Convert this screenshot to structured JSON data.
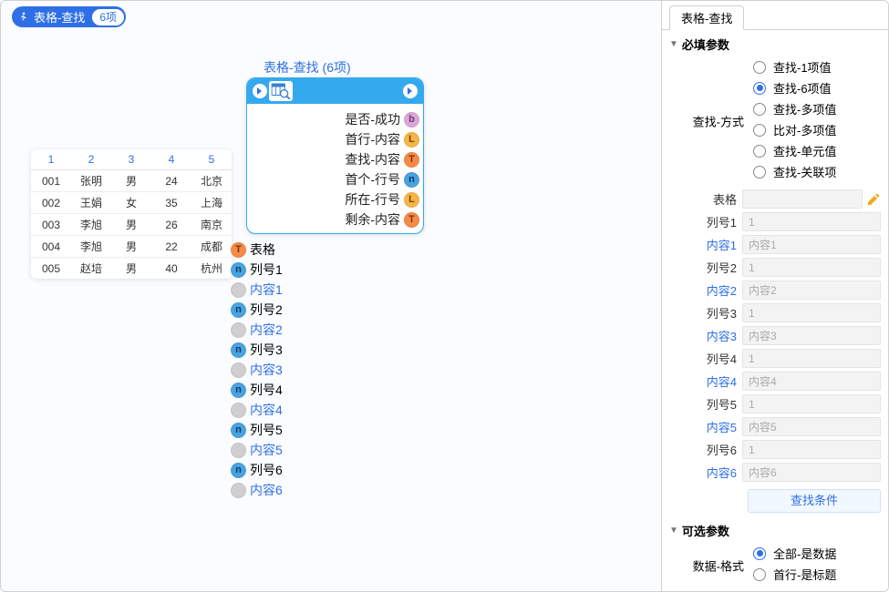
{
  "colors": {
    "accent": "#2f6fe6",
    "nodeHeader": "#35a9ed",
    "border": "#d0d0d0",
    "canvasBg": "#fafcff",
    "fieldBg": "#f3f3f3"
  },
  "tag": {
    "title": "表格-查找",
    "badge": "6项"
  },
  "sampleTable": {
    "headers": [
      "1",
      "2",
      "3",
      "4",
      "5"
    ],
    "rows": [
      [
        "001",
        "张明",
        "男",
        "24",
        "北京"
      ],
      [
        "002",
        "王娟",
        "女",
        "35",
        "上海"
      ],
      [
        "003",
        "李旭",
        "男",
        "26",
        "南京"
      ],
      [
        "004",
        "李旭",
        "男",
        "22",
        "成都"
      ],
      [
        "005",
        "赵培",
        "男",
        "40",
        "杭州"
      ]
    ]
  },
  "node": {
    "title": "表格-查找 (6项)",
    "outputs": [
      {
        "label": "是否-成功",
        "type": "b"
      },
      {
        "label": "首行-内容",
        "type": "L"
      },
      {
        "label": "查找-内容",
        "type": "T"
      },
      {
        "label": "首个-行号",
        "type": "n"
      },
      {
        "label": "所在-行号",
        "type": "L"
      },
      {
        "label": "剩余-内容",
        "type": "T"
      }
    ],
    "inputs": [
      {
        "label": "表格",
        "type": "T",
        "link": false
      },
      {
        "label": "列号1",
        "type": "n",
        "link": false
      },
      {
        "label": "内容1",
        "type": "g",
        "link": true
      },
      {
        "label": "列号2",
        "type": "n",
        "link": false
      },
      {
        "label": "内容2",
        "type": "g",
        "link": true
      },
      {
        "label": "列号3",
        "type": "n",
        "link": false
      },
      {
        "label": "内容3",
        "type": "g",
        "link": true
      },
      {
        "label": "列号4",
        "type": "n",
        "link": false
      },
      {
        "label": "内容4",
        "type": "g",
        "link": true
      },
      {
        "label": "列号5",
        "type": "n",
        "link": false
      },
      {
        "label": "内容5",
        "type": "g",
        "link": true
      },
      {
        "label": "列号6",
        "type": "n",
        "link": false
      },
      {
        "label": "内容6",
        "type": "g",
        "link": true
      }
    ]
  },
  "panel": {
    "tab": "表格-查找",
    "section1": "必填参数",
    "searchModeLabel": "查找-方式",
    "searchModes": [
      {
        "label": "查找-1项值",
        "selected": false
      },
      {
        "label": "查找-6项值",
        "selected": true
      },
      {
        "label": "查找-多项值",
        "selected": false
      },
      {
        "label": "比对-多项值",
        "selected": false
      },
      {
        "label": "查找-单元值",
        "selected": false
      },
      {
        "label": "查找-关联项",
        "selected": false
      }
    ],
    "tableLabel": "表格",
    "fields": [
      {
        "lbl": "列号1",
        "ph": "1",
        "link": false
      },
      {
        "lbl": "内容1",
        "ph": "内容1",
        "link": true
      },
      {
        "lbl": "列号2",
        "ph": "1",
        "link": false
      },
      {
        "lbl": "内容2",
        "ph": "内容2",
        "link": true
      },
      {
        "lbl": "列号3",
        "ph": "1",
        "link": false
      },
      {
        "lbl": "内容3",
        "ph": "内容3",
        "link": true
      },
      {
        "lbl": "列号4",
        "ph": "1",
        "link": false
      },
      {
        "lbl": "内容4",
        "ph": "内容4",
        "link": true
      },
      {
        "lbl": "列号5",
        "ph": "1",
        "link": false
      },
      {
        "lbl": "内容5",
        "ph": "内容5",
        "link": true
      },
      {
        "lbl": "列号6",
        "ph": "1",
        "link": false
      },
      {
        "lbl": "内容6",
        "ph": "内容6",
        "link": true
      }
    ],
    "condButton": "查找条件",
    "section2": "可选参数",
    "dataFmtLabel": "数据-格式",
    "dataFmts": [
      {
        "label": "全部-是数据",
        "selected": true
      },
      {
        "label": "首行-是标题",
        "selected": false
      }
    ]
  }
}
